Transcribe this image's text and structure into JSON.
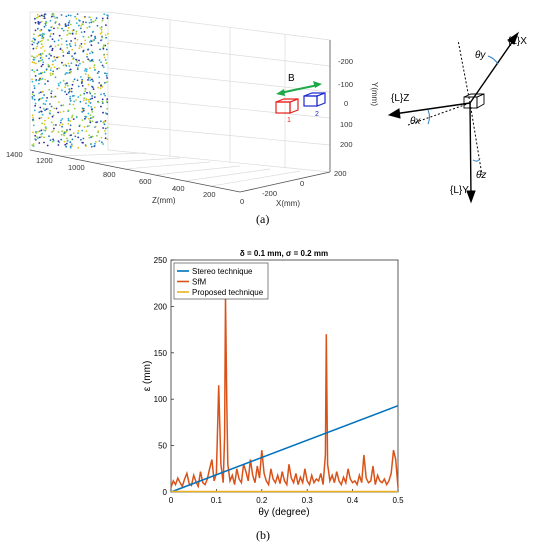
{
  "figure_a": {
    "caption": "(a)",
    "plot3d": {
      "z_axis_label": "Z(mm)",
      "x_axis_label": "X(mm)",
      "y_axis_label": "Y(mm)",
      "z_ticks": [
        "1400",
        "1200",
        "1000",
        "800",
        "600",
        "400",
        "200",
        "0"
      ],
      "x_ticks": [
        "-200",
        "0",
        "200"
      ],
      "y_ticks": [
        "-200",
        "-100",
        "0",
        "100",
        "200"
      ],
      "baseline_label": "B",
      "camera1_label": "1",
      "camera2_label": "2",
      "colors": {
        "camera1": "#e8231e",
        "camera2": "#1f2ad1",
        "baseline_arrow": "#1faa4a",
        "points": [
          "#1f77b4",
          "#2ab0d9",
          "#e0c31c",
          "#8fcf3a",
          "#2a2aa0"
        ]
      }
    },
    "rotation_diagram": {
      "axis_x_label": "{L}X",
      "axis_y_label": "{L}Y",
      "axis_z_label": "{L}Z",
      "angle_x_label": "θx",
      "angle_y_label": "θy",
      "angle_z_label": "θz"
    }
  },
  "figure_b": {
    "caption": "(b)",
    "chart_data": {
      "type": "line",
      "title": "δ = 0.1 mm, σ = 0.2 mm",
      "xlabel": "θy (degree)",
      "ylabel": "ε (mm)",
      "xlim": [
        0,
        0.5
      ],
      "ylim": [
        0,
        250
      ],
      "x_ticks": [
        "0",
        "0.1",
        "0.2",
        "0.3",
        "0.4",
        "0.5"
      ],
      "y_ticks": [
        "0",
        "50",
        "100",
        "150",
        "200",
        "250"
      ],
      "grid": false,
      "legend_position": "top-left",
      "series": [
        {
          "name": "Stereo technique",
          "color": "#0072bd",
          "x": [
            0,
            0.5
          ],
          "y": [
            0,
            93
          ]
        },
        {
          "name": "SfM",
          "color": "#d95319",
          "x": [
            0.0,
            0.005,
            0.01,
            0.015,
            0.02,
            0.025,
            0.03,
            0.035,
            0.04,
            0.045,
            0.05,
            0.055,
            0.06,
            0.065,
            0.07,
            0.075,
            0.08,
            0.085,
            0.09,
            0.095,
            0.1,
            0.105,
            0.11,
            0.115,
            0.118,
            0.12,
            0.123,
            0.125,
            0.13,
            0.135,
            0.14,
            0.145,
            0.15,
            0.155,
            0.16,
            0.165,
            0.17,
            0.175,
            0.18,
            0.185,
            0.19,
            0.195,
            0.2,
            0.205,
            0.21,
            0.215,
            0.22,
            0.225,
            0.23,
            0.235,
            0.24,
            0.245,
            0.25,
            0.255,
            0.26,
            0.265,
            0.27,
            0.275,
            0.28,
            0.285,
            0.29,
            0.295,
            0.3,
            0.305,
            0.31,
            0.315,
            0.32,
            0.325,
            0.33,
            0.335,
            0.34,
            0.342,
            0.345,
            0.35,
            0.355,
            0.36,
            0.365,
            0.37,
            0.375,
            0.38,
            0.385,
            0.39,
            0.395,
            0.4,
            0.405,
            0.41,
            0.415,
            0.42,
            0.425,
            0.43,
            0.435,
            0.44,
            0.445,
            0.45,
            0.455,
            0.46,
            0.465,
            0.47,
            0.475,
            0.48,
            0.485,
            0.49,
            0.495,
            0.5
          ],
          "y": [
            5,
            12,
            8,
            15,
            10,
            6,
            14,
            20,
            9,
            7,
            18,
            11,
            6,
            22,
            10,
            8,
            14,
            25,
            35,
            12,
            20,
            115,
            30,
            10,
            60,
            210,
            95,
            30,
            12,
            18,
            8,
            25,
            14,
            10,
            30,
            22,
            12,
            35,
            18,
            10,
            28,
            15,
            45,
            20,
            12,
            8,
            25,
            14,
            10,
            18,
            9,
            22,
            12,
            8,
            30,
            15,
            10,
            20,
            8,
            16,
            10,
            25,
            12,
            8,
            18,
            10,
            14,
            12,
            20,
            8,
            40,
            170,
            30,
            12,
            18,
            10,
            22,
            12,
            8,
            16,
            10,
            25,
            14,
            10,
            12,
            8,
            18,
            10,
            40,
            15,
            10,
            12,
            28,
            8,
            18,
            12,
            10,
            14,
            8,
            12,
            20,
            45,
            35,
            5
          ]
        },
        {
          "name": "Proposed technique",
          "color": "#edb120",
          "x": [
            0,
            0.5
          ],
          "y": [
            0.5,
            0.5
          ]
        }
      ]
    }
  }
}
